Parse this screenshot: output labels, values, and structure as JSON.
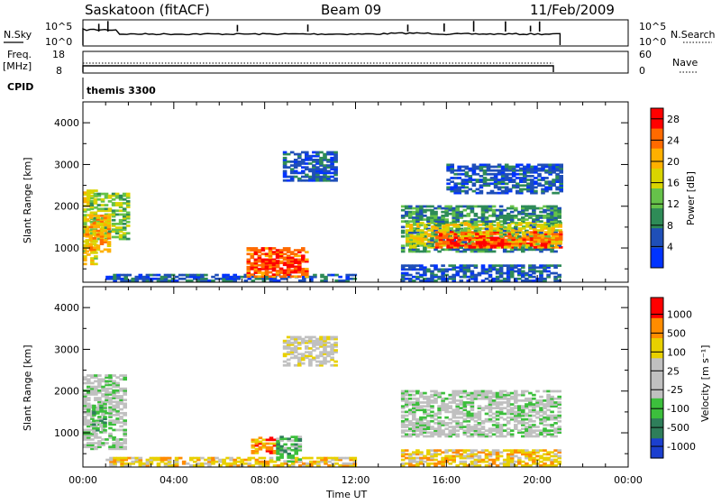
{
  "header": {
    "station": "Saskatoon (fitACF)",
    "beam": "Beam 09",
    "date": "11/Feb/2009"
  },
  "noise_panel": {
    "left_label": "N.Sky",
    "left_ticks": [
      "10^5",
      "10^0"
    ],
    "right_label": "N.Search",
    "right_ticks": [
      "10^5",
      "10^0"
    ]
  },
  "freq_panel": {
    "left_label_1": "Freq.",
    "left_label_2": "[MHz]",
    "left_ticks": [
      "18",
      "8"
    ],
    "right_label": "Nave",
    "right_ticks": [
      "60",
      "0"
    ]
  },
  "cpid": {
    "label": "CPID",
    "value": "themis 3300"
  },
  "chart_data": [
    {
      "type": "heatmap",
      "quantity": "Power",
      "xlabel": "",
      "ylabel": "Slant Range [km]",
      "xlim": [
        0,
        24
      ],
      "ylim": [
        180,
        4500
      ],
      "yticks": [
        "1000",
        "2000",
        "3000",
        "4000"
      ],
      "colorbar": {
        "label": "Power [dB]",
        "range": [
          0,
          30
        ],
        "tick_values": [
          4,
          8,
          12,
          16,
          20,
          24,
          28
        ],
        "tick_labels": [
          "4",
          "8",
          "12",
          "16",
          "20",
          "24",
          "28"
        ],
        "colors": [
          "#0033ff",
          "#1f4fb8",
          "#2e8b57",
          "#66c24a",
          "#d9d400",
          "#ffb000",
          "#ff6a00",
          "#ff0000"
        ]
      },
      "regions": [
        {
          "t": [
            0.0,
            0.5
          ],
          "r": [
            600,
            2400
          ],
          "level": 4
        },
        {
          "t": [
            0.3,
            2.0
          ],
          "r": [
            1200,
            2300
          ],
          "level": 3
        },
        {
          "t": [
            0.1,
            1.2
          ],
          "r": [
            900,
            1800
          ],
          "level": 5
        },
        {
          "t": [
            1.0,
            12.0
          ],
          "r": [
            200,
            350
          ],
          "level": 1
        },
        {
          "t": [
            7.2,
            9.8
          ],
          "r": [
            300,
            1000
          ],
          "level": 6
        },
        {
          "t": [
            8.0,
            9.6
          ],
          "r": [
            400,
            700
          ],
          "level": 7
        },
        {
          "t": [
            8.8,
            11.2
          ],
          "r": [
            2600,
            3300
          ],
          "level": 1
        },
        {
          "t": [
            14.0,
            21.0
          ],
          "r": [
            900,
            2000
          ],
          "level": 2
        },
        {
          "t": [
            14.2,
            21.0
          ],
          "r": [
            1000,
            1600
          ],
          "level": 4
        },
        {
          "t": [
            15.5,
            21.0
          ],
          "r": [
            1000,
            1400
          ],
          "level": 6
        },
        {
          "t": [
            16.0,
            18.5
          ],
          "r": [
            1000,
            1250
          ],
          "level": 7
        },
        {
          "t": [
            14.0,
            21.0
          ],
          "r": [
            200,
            600
          ],
          "level": 1
        },
        {
          "t": [
            16.0,
            21.0
          ],
          "r": [
            2300,
            3000
          ],
          "level": 1
        }
      ]
    },
    {
      "type": "heatmap",
      "quantity": "Velocity",
      "xlabel": "Time UT",
      "ylabel": "Slant Range [km]",
      "xlim": [
        0,
        24
      ],
      "ylim": [
        180,
        4500
      ],
      "yticks": [
        "1000",
        "2000",
        "3000",
        "4000"
      ],
      "xticks": [
        "00:00",
        "04:00",
        "08:00",
        "12:00",
        "16:00",
        "20:00",
        "00:00"
      ],
      "colorbar": {
        "label": "Velocity [m s⁻¹]",
        "tick_labels": [
          "1000",
          "500",
          "100",
          "25",
          "-25",
          "-100",
          "-500",
          "-1000"
        ],
        "colors": [
          "#1b3fcf",
          "#2e7e5a",
          "#3cbf3c",
          "#c0c0c0",
          "#c0c0c0",
          "#e8d000",
          "#ff8c00",
          "#ff0000"
        ]
      },
      "regions": [
        {
          "t": [
            0.0,
            1.8
          ],
          "r": [
            600,
            2400
          ],
          "level": 3
        },
        {
          "t": [
            0.4,
            1.0
          ],
          "r": [
            1000,
            1700
          ],
          "level": 2
        },
        {
          "t": [
            1.0,
            12.0
          ],
          "r": [
            200,
            400
          ],
          "level": 5
        },
        {
          "t": [
            7.4,
            8.6
          ],
          "r": [
            500,
            900
          ],
          "level": 6
        },
        {
          "t": [
            8.5,
            9.6
          ],
          "r": [
            300,
            900
          ],
          "level": 2
        },
        {
          "t": [
            8.8,
            11.2
          ],
          "r": [
            2600,
            3300
          ],
          "level": 4
        },
        {
          "t": [
            14.0,
            21.0
          ],
          "r": [
            900,
            2000
          ],
          "level": 3
        },
        {
          "t": [
            14.0,
            21.0
          ],
          "r": [
            200,
            600
          ],
          "level": 5
        }
      ]
    }
  ]
}
